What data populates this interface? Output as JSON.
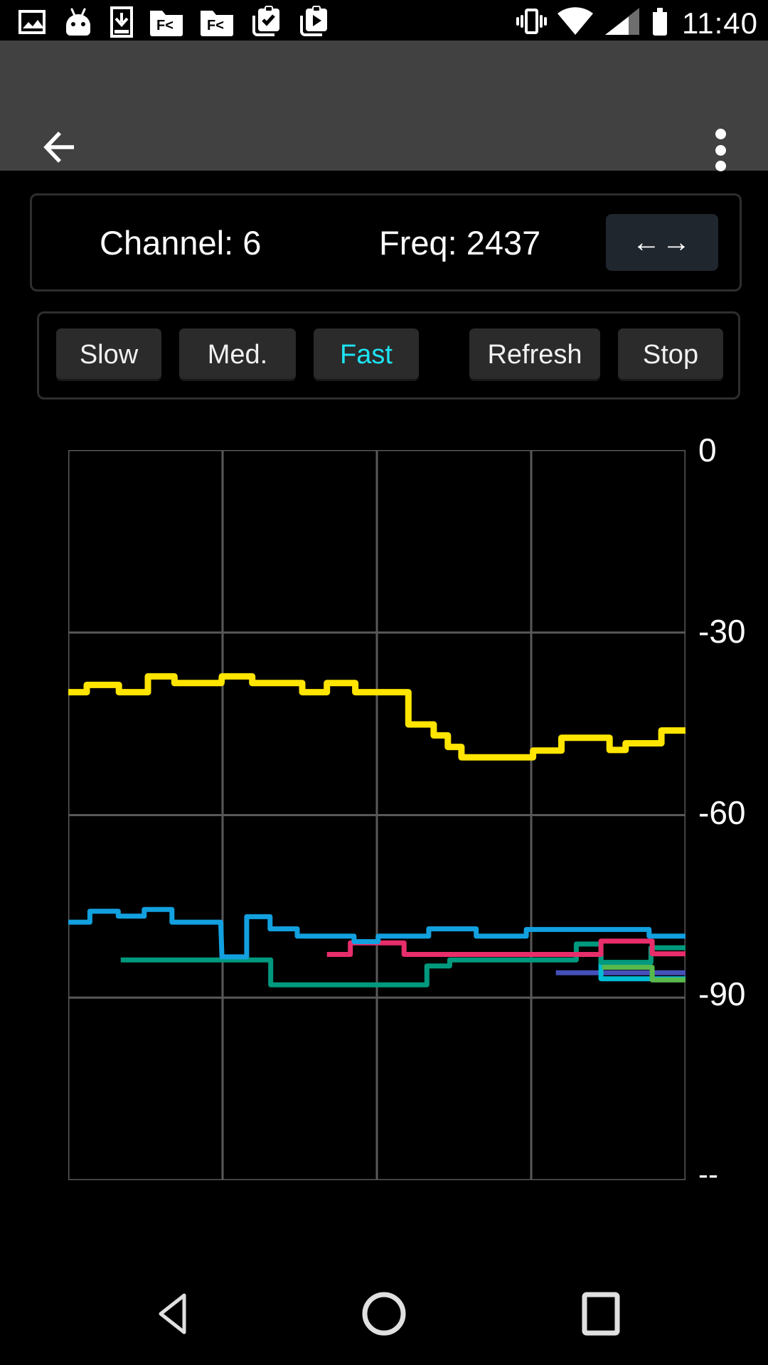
{
  "status_bar": {
    "time": "11:40",
    "left_icons": [
      "gallery-icon",
      "android-marshmallow-icon",
      "download-icon",
      "fx-folder-icon",
      "fx-folder-icon",
      "clipboard-check-icon",
      "clipboard-play-icon"
    ],
    "right_icons": [
      "vibrate-icon",
      "wifi-icon",
      "cell-signal-icon",
      "battery-icon"
    ]
  },
  "app_bar": {
    "background": "#414141",
    "icons": [
      "back-arrow-icon",
      "overflow-menu-icon"
    ]
  },
  "channel_panel": {
    "channel": "Channel: 6",
    "freq": "Freq: 2437",
    "swap_icon_left": "←",
    "swap_icon_right": "→"
  },
  "controls": {
    "buttons": [
      "Slow",
      "Med.",
      "Fast",
      "Refresh",
      "Stop"
    ],
    "active_button": "Fast",
    "active_color": "#1de3f3",
    "button_bg": "#2b2b2b"
  },
  "chart_data": {
    "type": "line",
    "title": "",
    "ylim": [
      -120,
      0
    ],
    "y_tick_labels": [
      "0",
      "-30",
      "-60",
      "-90",
      "--"
    ],
    "grid": true,
    "x_divisions": 4,
    "grid_color": "#585858",
    "series": [
      {
        "name": "indigo-trace",
        "color": "#4450b8",
        "stroke_width": 7,
        "points": [
          [
            79.0,
            -85.9
          ],
          [
            100,
            -85.9
          ]
        ]
      },
      {
        "name": "cyan-trace",
        "color": "#00bcd4",
        "stroke_width": 7,
        "points": [
          [
            75.0,
            -82.9
          ],
          [
            86.3,
            -82.9
          ],
          [
            86.3,
            -86.9
          ],
          [
            100,
            -86.9
          ]
        ]
      },
      {
        "name": "green-trace",
        "color": "#58b94c",
        "stroke_width": 7,
        "points": [
          [
            86.5,
            -85.0
          ],
          [
            94.6,
            -85.0
          ],
          [
            94.6,
            -87.1
          ],
          [
            100,
            -87.1
          ]
        ]
      },
      {
        "name": "teal-trace",
        "color": "#00997e",
        "stroke_width": 7,
        "points": [
          [
            8.5,
            -83.8
          ],
          [
            32.8,
            -83.8
          ],
          [
            32.8,
            -87.9
          ],
          [
            58.1,
            -87.9
          ],
          [
            58.1,
            -84.8
          ],
          [
            61.8,
            -84.8
          ],
          [
            61.8,
            -83.8
          ],
          [
            82.3,
            -83.8
          ],
          [
            82.3,
            -81.2
          ],
          [
            86.3,
            -81.2
          ],
          [
            86.3,
            -84.2
          ],
          [
            94.4,
            -84.2
          ],
          [
            94.4,
            -81.8
          ],
          [
            100,
            -81.8
          ]
        ]
      },
      {
        "name": "pink-trace",
        "color": "#e82d6b",
        "stroke_width": 7,
        "points": [
          [
            41.9,
            -82.9
          ],
          [
            45.7,
            -82.9
          ],
          [
            45.7,
            -81.0
          ],
          [
            54.4,
            -81.0
          ],
          [
            54.4,
            -82.9
          ],
          [
            86.3,
            -82.9
          ],
          [
            86.3,
            -80.7
          ],
          [
            94.6,
            -80.7
          ],
          [
            94.6,
            -82.8
          ],
          [
            100,
            -82.8
          ]
        ]
      },
      {
        "name": "blue-trace",
        "color": "#12a0df",
        "stroke_width": 7,
        "points": [
          [
            0,
            -77.6
          ],
          [
            3.5,
            -77.6
          ],
          [
            3.5,
            -75.8
          ],
          [
            8.1,
            -75.8
          ],
          [
            8.1,
            -76.6
          ],
          [
            12.3,
            -76.6
          ],
          [
            12.3,
            -75.5
          ],
          [
            16.8,
            -75.5
          ],
          [
            16.8,
            -77.6
          ],
          [
            24.7,
            -77.6
          ],
          [
            24.9,
            -83.3
          ],
          [
            28.9,
            -83.3
          ],
          [
            28.9,
            -76.7
          ],
          [
            32.7,
            -76.7
          ],
          [
            32.7,
            -78.7
          ],
          [
            37.1,
            -78.7
          ],
          [
            37.1,
            -79.9
          ],
          [
            46.3,
            -79.9
          ],
          [
            46.3,
            -80.8
          ],
          [
            50.2,
            -80.8
          ],
          [
            50.2,
            -79.9
          ],
          [
            58.4,
            -79.9
          ],
          [
            58.4,
            -78.7
          ],
          [
            66.1,
            -78.7
          ],
          [
            66.1,
            -79.9
          ],
          [
            74.2,
            -79.9
          ],
          [
            74.2,
            -78.8
          ],
          [
            94.1,
            -78.8
          ],
          [
            94.1,
            -79.9
          ],
          [
            100,
            -79.9
          ]
        ]
      },
      {
        "name": "yellow-trace",
        "color": "#ffe500",
        "stroke_width": 9,
        "points": [
          [
            0,
            -39.8
          ],
          [
            3,
            -39.8
          ],
          [
            3,
            -38.6
          ],
          [
            8.2,
            -38.6
          ],
          [
            8.2,
            -39.8
          ],
          [
            12.9,
            -39.8
          ],
          [
            12.9,
            -37.2
          ],
          [
            17.2,
            -37.2
          ],
          [
            17.2,
            -38.3
          ],
          [
            24.8,
            -38.3
          ],
          [
            24.9,
            -37.2
          ],
          [
            29.8,
            -37.2
          ],
          [
            29.8,
            -38.3
          ],
          [
            37.9,
            -38.3
          ],
          [
            37.9,
            -39.8
          ],
          [
            41.9,
            -39.8
          ],
          [
            41.9,
            -38.3
          ],
          [
            46.5,
            -38.3
          ],
          [
            46.5,
            -39.8
          ],
          [
            55.1,
            -39.8
          ],
          [
            55.1,
            -45.1
          ],
          [
            59.2,
            -45.1
          ],
          [
            59.2,
            -46.9
          ],
          [
            61.5,
            -46.9
          ],
          [
            61.5,
            -48.8
          ],
          [
            63.7,
            -48.8
          ],
          [
            63.7,
            -50.5
          ],
          [
            75.3,
            -50.5
          ],
          [
            75.3,
            -49.4
          ],
          [
            79.9,
            -49.4
          ],
          [
            79.9,
            -47.3
          ],
          [
            87.7,
            -47.3
          ],
          [
            87.7,
            -49.3
          ],
          [
            90.3,
            -49.3
          ],
          [
            90.3,
            -48.2
          ],
          [
            96.1,
            -48.2
          ],
          [
            96.1,
            -46.1
          ],
          [
            100,
            -46.1
          ]
        ]
      }
    ]
  },
  "nav_bar": {
    "icons": [
      "nav-back-icon",
      "nav-home-icon",
      "nav-recents-icon"
    ]
  }
}
